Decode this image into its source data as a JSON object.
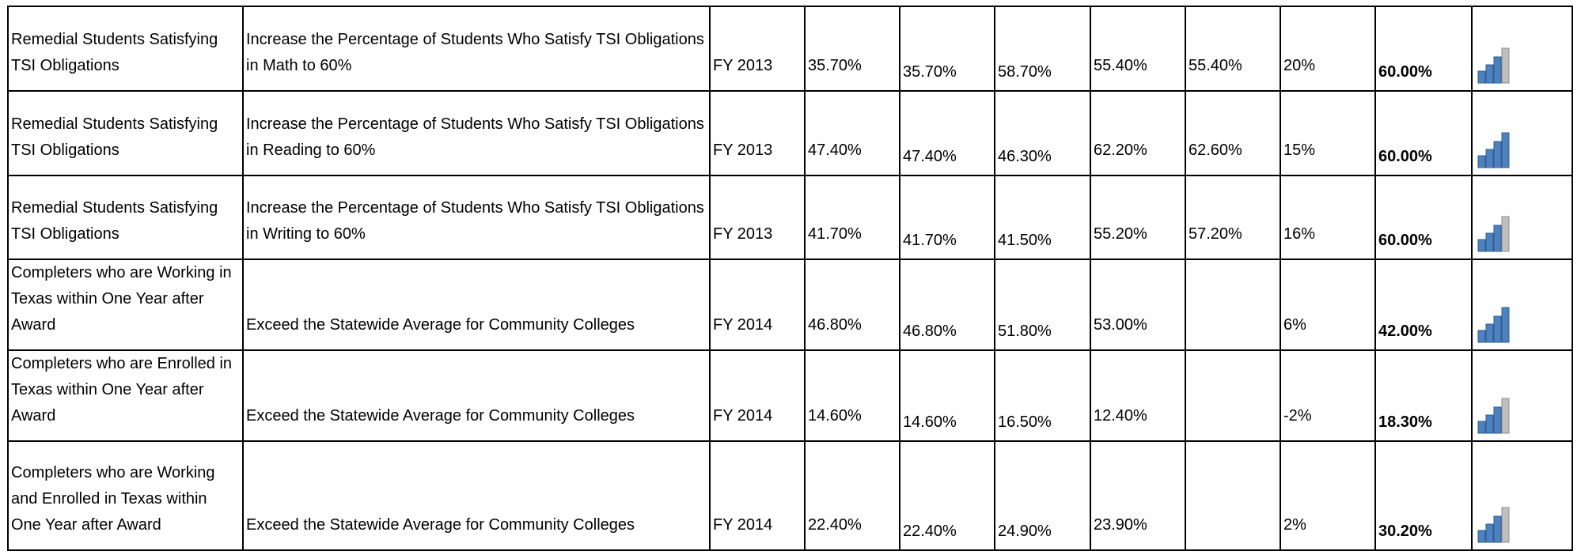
{
  "table": {
    "rows": [
      [
        "Remedial Students Satisfying TSI Obligations",
        "Increase the Percentage of Students Who Satisfy TSI Obligations in Math to 60%",
        "FY 2013",
        "35.70%",
        "35.70%",
        "58.70%",
        "55.40%",
        "55.40%",
        "20%",
        "60.00%"
      ],
      [
        "Remedial Students Satisfying TSI Obligations",
        "Increase the Percentage of Students Who Satisfy TSI Obligations in Reading to 60%",
        "FY 2013",
        "47.40%",
        "47.40%",
        "46.30%",
        "62.20%",
        "62.60%",
        "15%",
        "60.00%"
      ],
      [
        "Remedial Students Satisfying TSI Obligations",
        "Increase the Percentage of Students Who Satisfy TSI Obligations in Writing to 60%",
        "FY 2013",
        "41.70%",
        "41.70%",
        "41.50%",
        "55.20%",
        "57.20%",
        "16%",
        "60.00%"
      ],
      [
        "Completers who are Working in Texas within One Year after Award",
        "Exceed the Statewide Average for Community Colleges",
        "FY 2014",
        "46.80%",
        "46.80%",
        "51.80%",
        "53.00%",
        null,
        "6%",
        "42.00%"
      ],
      [
        "Completers who are Enrolled in Texas within One Year after Award",
        "Exceed the Statewide Average for Community Colleges",
        "FY 2014",
        "14.60%",
        "14.60%",
        "16.50%",
        "12.40%",
        null,
        "-2%",
        "18.30%"
      ],
      [
        "Completers who are Working and Enrolled in Texas within One Year after Award",
        "Exceed the Statewide Average for Community Colleges",
        "FY 2014",
        "22.40%",
        "22.40%",
        "24.90%",
        "23.90%",
        null,
        "2%",
        "30.20%"
      ]
    ]
  }
}
